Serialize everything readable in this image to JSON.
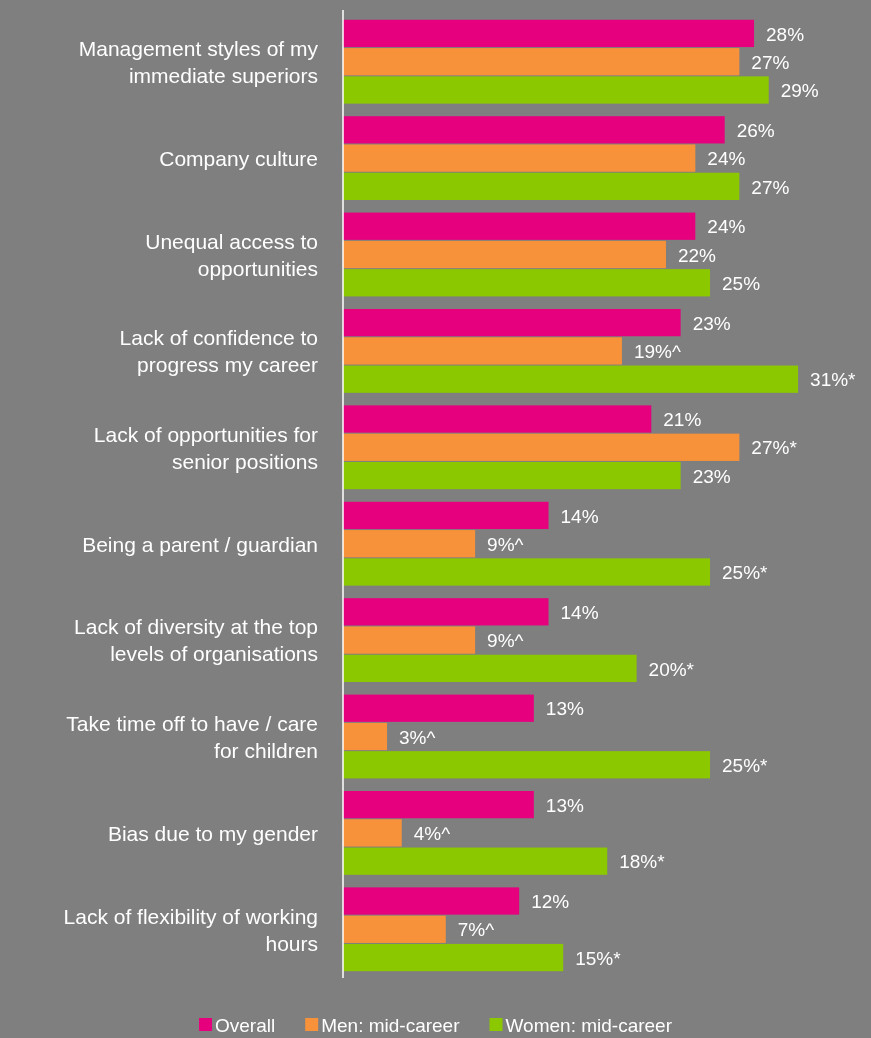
{
  "chart_data": {
    "type": "bar",
    "orientation": "horizontal",
    "categories": [
      "Management styles of my immediate superiors",
      "Company culture",
      "Unequal access to opportunities",
      "Lack of confidence to progress my career",
      "Lack of opportunities for senior positions",
      "Being a parent / guardian",
      "Lack of diversity at the top levels of organisations",
      "Take time off to have / care for children",
      "Bias due to my gender",
      "Lack of flexibility of working hours"
    ],
    "series": [
      {
        "name": "Overall",
        "color": "#e6007e",
        "values": [
          28,
          26,
          24,
          23,
          21,
          14,
          14,
          13,
          13,
          12
        ],
        "value_labels": [
          "28%",
          "26%",
          "24%",
          "23%",
          "21%",
          "14%",
          "14%",
          "13%",
          "13%",
          "12%"
        ]
      },
      {
        "name": "Men: mid-career",
        "color": "#f7923a",
        "values": [
          27,
          24,
          22,
          19,
          27,
          9,
          9,
          3,
          4,
          7
        ],
        "value_labels": [
          "27%",
          "24%",
          "22%",
          "19%^",
          "27%*",
          "9%^",
          "9%^",
          "3%^",
          "4%^",
          "7%^"
        ]
      },
      {
        "name": "Women: mid-career",
        "color": "#8cc800",
        "values": [
          29,
          27,
          25,
          31,
          23,
          25,
          20,
          25,
          18,
          15
        ],
        "value_labels": [
          "29%",
          "27%",
          "25%",
          "31%*",
          "23%",
          "25%*",
          "20%*",
          "25%*",
          "18%*",
          "15%*"
        ]
      }
    ],
    "tick_labels": "y",
    "legend": "bottom"
  }
}
